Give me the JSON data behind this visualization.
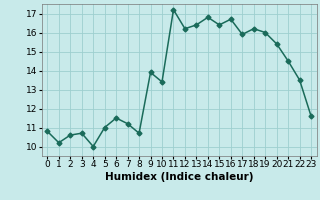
{
  "xlabel": "Humidex (Indice chaleur)",
  "x": [
    0,
    1,
    2,
    3,
    4,
    5,
    6,
    7,
    8,
    9,
    10,
    11,
    12,
    13,
    14,
    15,
    16,
    17,
    18,
    19,
    20,
    21,
    22,
    23
  ],
  "y": [
    10.8,
    10.2,
    10.6,
    10.7,
    10.0,
    11.0,
    11.5,
    11.2,
    10.7,
    13.9,
    13.4,
    17.2,
    16.2,
    16.4,
    16.8,
    16.4,
    16.7,
    15.9,
    16.2,
    16.0,
    15.4,
    14.5,
    13.5,
    11.6
  ],
  "line_color": "#1a6b5a",
  "marker": "D",
  "marker_size": 2.5,
  "bg_color": "#c8eaea",
  "grid_color": "#9ecfcf",
  "ylim": [
    9.5,
    17.5
  ],
  "yticks": [
    10,
    11,
    12,
    13,
    14,
    15,
    16,
    17
  ],
  "xlim": [
    -0.5,
    23.5
  ],
  "xticks": [
    0,
    1,
    2,
    3,
    4,
    5,
    6,
    7,
    8,
    9,
    10,
    11,
    12,
    13,
    14,
    15,
    16,
    17,
    18,
    19,
    20,
    21,
    22,
    23
  ],
  "xlabel_fontsize": 7.5,
  "tick_fontsize": 6.5,
  "line_width": 1.1
}
